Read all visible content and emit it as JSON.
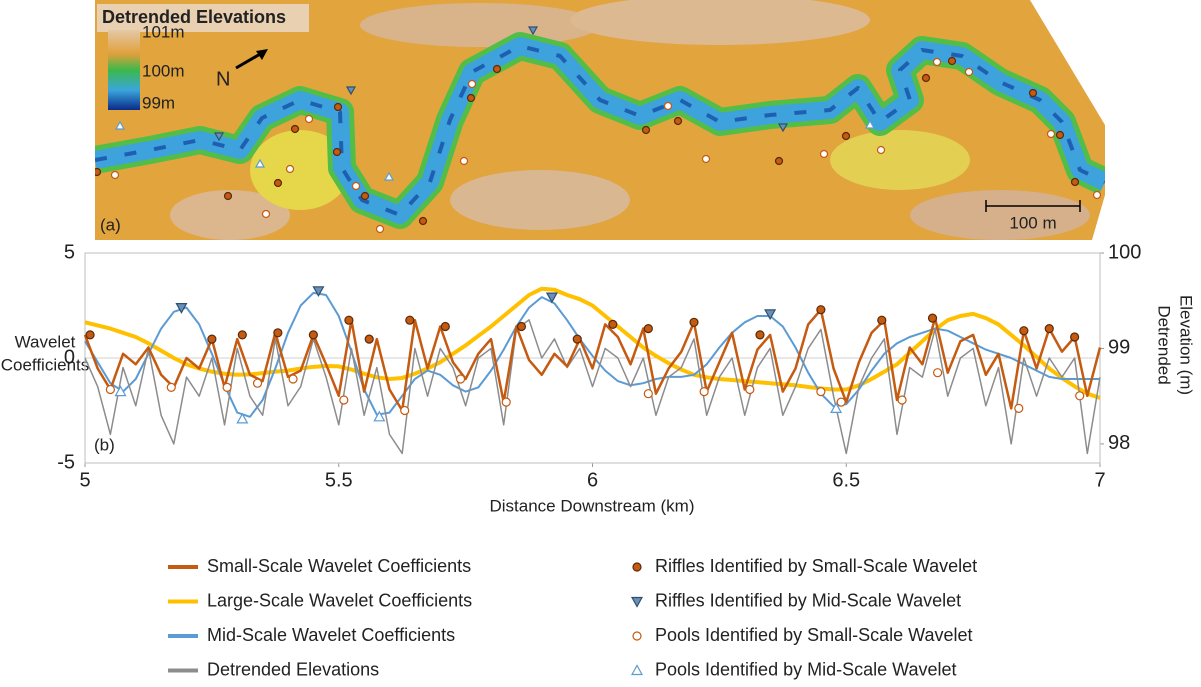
{
  "map": {
    "colorbar_title": "Detrended Elevations",
    "colorbar_labels": [
      "101m",
      "100m",
      "99m"
    ],
    "north_label": "N",
    "panel_label": "(a)",
    "scale_bar_label": "100 m"
  },
  "chart_data": {
    "type": "line",
    "panel_label": "(b)",
    "xlabel": "Distance Downstream (km)",
    "ylabel": [
      "Wavelet",
      "Coefficients"
    ],
    "y2label": [
      "Detrended",
      "Elevation (m)"
    ],
    "xlim": [
      5,
      7
    ],
    "xticks": [
      5,
      5.5,
      6,
      6.5,
      7
    ],
    "ylim": [
      -5,
      5
    ],
    "yticks": [
      -5,
      0,
      5
    ],
    "y2lim": [
      97.8,
      100
    ],
    "y2ticks": [
      98,
      99,
      100
    ],
    "grid": true,
    "x": [
      5,
      5.025,
      5.05,
      5.075,
      5.1,
      5.125,
      5.15,
      5.175,
      5.2,
      5.225,
      5.25,
      5.275,
      5.3,
      5.325,
      5.35,
      5.375,
      5.4,
      5.425,
      5.45,
      5.475,
      5.5,
      5.525,
      5.55,
      5.575,
      5.6,
      5.625,
      5.65,
      5.675,
      5.7,
      5.725,
      5.75,
      5.775,
      5.8,
      5.825,
      5.85,
      5.875,
      5.9,
      5.925,
      5.95,
      5.975,
      6,
      6.025,
      6.05,
      6.075,
      6.1,
      6.125,
      6.15,
      6.175,
      6.2,
      6.225,
      6.25,
      6.275,
      6.3,
      6.325,
      6.35,
      6.375,
      6.4,
      6.425,
      6.45,
      6.475,
      6.5,
      6.525,
      6.55,
      6.575,
      6.6,
      6.625,
      6.65,
      6.675,
      6.7,
      6.725,
      6.75,
      6.775,
      6.8,
      6.825,
      6.85,
      6.875,
      6.9,
      6.925,
      6.95,
      6.975,
      7
    ],
    "series": [
      {
        "name": "Small-Scale Wavelet Coefficients",
        "type": "line",
        "color": "#c55a11",
        "width": 2.5,
        "values": [
          1.1,
          -0.5,
          -1.5,
          0.2,
          -0.3,
          0.5,
          -0.8,
          -1.4,
          0.0,
          -0.5,
          0.9,
          -1.4,
          0.9,
          -0.8,
          -1.1,
          1.2,
          -0.9,
          -0.6,
          1.1,
          -0.3,
          -1.8,
          1.8,
          -1.6,
          0.9,
          -1.5,
          -2.5,
          1.8,
          -0.5,
          1.5,
          -0.2,
          -1.0,
          0.2,
          0.9,
          -2.1,
          1.5,
          -0.1,
          -0.8,
          0.2,
          -0.4,
          0.9,
          -0.5,
          1.6,
          1.0,
          -0.3,
          1.4,
          -1.7,
          -0.5,
          0.3,
          1.7,
          -1.6,
          -0.2,
          1.2,
          -1.5,
          0.4,
          1.1,
          -1.6,
          -0.5,
          1.6,
          2.3,
          -0.5,
          -2.1,
          -0.2,
          1.2,
          1.8,
          -2.0,
          0.5,
          -0.3,
          1.9,
          -0.7,
          0.8,
          1.1,
          -0.8,
          0.2,
          -2.4,
          1.3,
          -0.5,
          1.4,
          0.3,
          1.0,
          -1.8,
          0.5
        ]
      },
      {
        "name": "Large-Scale Wavelet Coefficients",
        "type": "line",
        "color": "#ffc000",
        "width": 4,
        "values": [
          1.7,
          1.55,
          1.4,
          1.2,
          1.0,
          0.7,
          0.35,
          0.0,
          -0.3,
          -0.5,
          -0.65,
          -0.75,
          -0.8,
          -0.78,
          -0.72,
          -0.65,
          -0.6,
          -0.5,
          -0.42,
          -0.38,
          -0.4,
          -0.55,
          -0.75,
          -0.92,
          -1.0,
          -0.95,
          -0.75,
          -0.5,
          -0.2,
          0.2,
          0.6,
          1.05,
          1.5,
          2.0,
          2.5,
          3.0,
          3.3,
          3.25,
          3.0,
          2.8,
          2.5,
          2.0,
          1.5,
          1.0,
          0.5,
          0.1,
          -0.25,
          -0.55,
          -0.8,
          -0.92,
          -1.0,
          -1.05,
          -1.1,
          -1.15,
          -1.2,
          -1.25,
          -1.3,
          -1.38,
          -1.45,
          -1.5,
          -1.5,
          -1.3,
          -1.0,
          -0.65,
          -0.3,
          0.25,
          0.8,
          1.35,
          1.8,
          2.0,
          2.1,
          1.9,
          1.6,
          1.1,
          0.6,
          0.05,
          -0.5,
          -0.95,
          -1.35,
          -1.7,
          -1.9
        ]
      },
      {
        "name": "Mid-Scale Wavelet Coefficients",
        "type": "line",
        "color": "#5b9bd5",
        "width": 2,
        "values": [
          0.8,
          -0.2,
          -1.2,
          -1.6,
          -1.0,
          0.2,
          1.4,
          2.2,
          2.4,
          1.6,
          0.2,
          -1.3,
          -2.6,
          -2.8,
          -2.0,
          -0.5,
          1.2,
          2.5,
          3.1,
          3.0,
          2.0,
          0.3,
          -1.5,
          -2.7,
          -2.6,
          -1.8,
          -1.0,
          -0.6,
          -0.8,
          -1.3,
          -1.6,
          -1.4,
          -0.6,
          0.4,
          1.5,
          2.4,
          2.9,
          2.6,
          1.8,
          0.9,
          0.1,
          -0.6,
          -1.1,
          -1.3,
          -1.2,
          -1.0,
          -0.9,
          -0.9,
          -0.8,
          -0.3,
          0.5,
          1.2,
          1.7,
          2.0,
          2.0,
          1.5,
          0.5,
          -0.7,
          -1.7,
          -2.3,
          -2.2,
          -1.5,
          -0.6,
          0.2,
          0.7,
          1.0,
          1.2,
          1.4,
          1.3,
          1.0,
          0.7,
          0.4,
          0.2,
          0.0,
          -0.3,
          -0.6,
          -0.9,
          -1.0,
          -1.0,
          -1.0,
          -1.0
        ]
      },
      {
        "name": "Detrended Elevations",
        "type": "line",
        "color": "#8c8c8c",
        "width": 1.5,
        "axis": "y2",
        "values": [
          98.9,
          98.6,
          98.1,
          98.8,
          98.4,
          99.0,
          98.3,
          98.0,
          98.7,
          98.5,
          98.9,
          98.2,
          99.0,
          98.5,
          98.3,
          99.1,
          98.4,
          98.6,
          99.1,
          98.7,
          98.2,
          99.0,
          98.3,
          98.8,
          98.1,
          97.9,
          99.0,
          98.5,
          99.0,
          98.8,
          98.4,
          98.9,
          99.0,
          98.2,
          99.2,
          99.3,
          98.9,
          99.1,
          98.8,
          99.0,
          98.6,
          99.0,
          98.9,
          98.6,
          98.9,
          98.3,
          98.7,
          98.8,
          99.1,
          98.3,
          98.7,
          98.9,
          98.3,
          98.8,
          99.0,
          98.3,
          98.6,
          99.0,
          99.2,
          98.5,
          97.9,
          98.6,
          98.9,
          99.1,
          98.1,
          98.8,
          98.7,
          99.2,
          98.5,
          98.9,
          99.0,
          98.4,
          98.8,
          98.0,
          98.9,
          98.5,
          98.9,
          98.7,
          98.9,
          97.9,
          98.7
        ]
      },
      {
        "name": "Riffles Identified by Small-Scale Wavelet",
        "type": "scatter",
        "marker": "circle",
        "color": "#5a2a0a",
        "fill": "#c55a11",
        "x": [
          5.01,
          5.25,
          5.31,
          5.38,
          5.45,
          5.52,
          5.56,
          5.64,
          5.71,
          5.86,
          5.97,
          6.04,
          6.11,
          6.2,
          6.33,
          6.45,
          6.57,
          6.67,
          6.85,
          6.9,
          6.95
        ],
        "values": [
          1.1,
          0.9,
          1.1,
          1.2,
          1.1,
          1.8,
          0.9,
          1.8,
          1.5,
          1.5,
          0.9,
          1.6,
          1.4,
          1.7,
          1.1,
          2.3,
          1.8,
          1.9,
          1.3,
          1.4,
          1.0
        ]
      },
      {
        "name": "Riffles Identified by Mid-Scale Wavelet",
        "type": "scatter",
        "marker": "triangle-down",
        "color": "#2f4f6f",
        "fill": "#6a8fb8",
        "x": [
          5.19,
          5.46,
          5.92,
          6.35
        ],
        "values": [
          2.4,
          3.2,
          2.9,
          2.1
        ]
      },
      {
        "name": "Pools Identified by Small-Scale Wavelet",
        "type": "scatter",
        "marker": "circle",
        "color": "#c55a11",
        "fill": "#ffffff",
        "x": [
          5.05,
          5.17,
          5.28,
          5.34,
          5.41,
          5.51,
          5.63,
          5.74,
          5.83,
          6.11,
          6.22,
          6.31,
          6.45,
          6.49,
          6.61,
          6.68,
          6.84,
          6.96
        ],
        "values": [
          -1.5,
          -1.4,
          -1.4,
          -1.2,
          -1.0,
          -2.0,
          -2.5,
          -1.0,
          -2.1,
          -1.7,
          -1.6,
          -1.5,
          -1.6,
          -2.1,
          -2.0,
          -0.7,
          -2.4,
          -1.8
        ]
      },
      {
        "name": "Pools Identified by Mid-Scale Wavelet",
        "type": "scatter",
        "marker": "triangle-up",
        "color": "#5b9bd5",
        "fill": "#ffffff",
        "x": [
          5.07,
          5.31,
          5.58,
          6.48
        ],
        "values": [
          -1.6,
          -2.9,
          -2.8,
          -2.4
        ]
      }
    ]
  }
}
